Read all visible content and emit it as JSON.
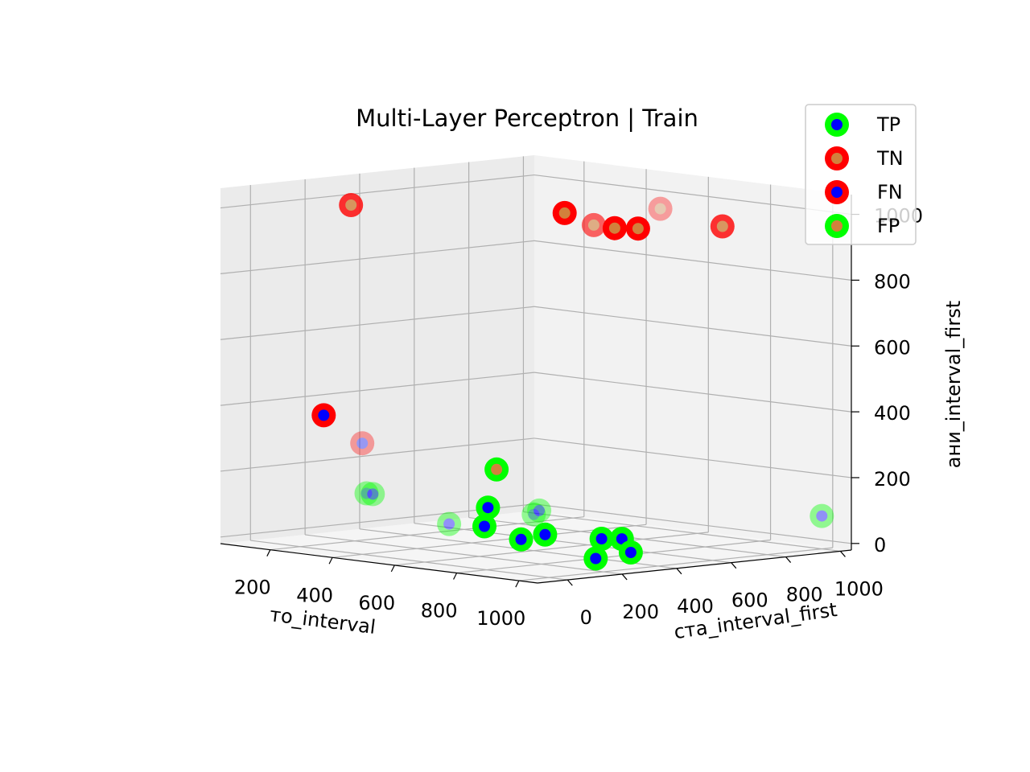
{
  "chart_data": {
    "type": "scatter",
    "projection": "3d",
    "title": "Multi-Layer Perceptron | Train",
    "xlabel": "то_interval",
    "ylabel": "ста_interval_first",
    "zlabel": "ани_interval_first",
    "xticks": [
      "200",
      "400",
      "600",
      "800",
      "1000"
    ],
    "yticks": [
      "0",
      "200",
      "400",
      "600",
      "800",
      "1000"
    ],
    "zticks": [
      "0",
      "200",
      "400",
      "600",
      "800",
      "1000"
    ],
    "grid": true,
    "legend_position": "top-right",
    "series": [
      {
        "name": "TP",
        "edge_color": "#00ff00",
        "face_color": "#0000ff",
        "points": [
          {
            "x": 760,
            "y": 50,
            "z": 160,
            "alpha": 1.0
          },
          {
            "x": 740,
            "y": 60,
            "z": 100,
            "alpha": 1.0
          },
          {
            "x": 840,
            "y": 80,
            "z": 70,
            "alpha": 1.0
          },
          {
            "x": 900,
            "y": 100,
            "z": 90,
            "alpha": 1.0
          },
          {
            "x": 950,
            "y": 250,
            "z": 70,
            "alpha": 1.0
          },
          {
            "x": 980,
            "y": 290,
            "z": 70,
            "alpha": 1.0
          },
          {
            "x": 1000,
            "y": 300,
            "z": 30,
            "alpha": 1.0
          },
          {
            "x": 940,
            "y": 240,
            "z": 10,
            "alpha": 1.0
          },
          {
            "x": 150,
            "y": 300,
            "z": 110,
            "alpha": 0.4
          },
          {
            "x": 170,
            "y": 300,
            "z": 110,
            "alpha": 0.4
          },
          {
            "x": 240,
            "y": 500,
            "z": 10,
            "alpha": 0.4
          },
          {
            "x": 600,
            "y": 400,
            "z": 90,
            "alpha": 0.4
          },
          {
            "x": 600,
            "y": 420,
            "z": 100,
            "alpha": 0.4
          },
          {
            "x": 1000,
            "y": 1000,
            "z": 80,
            "alpha": 0.4
          }
        ]
      },
      {
        "name": "TN",
        "edge_color": "#ff0000",
        "face_color": "#d2803c",
        "points": [
          {
            "x": 100,
            "y": 300,
            "z": 980,
            "alpha": 0.8
          },
          {
            "x": 480,
            "y": 650,
            "z": 970,
            "alpha": 1.0
          },
          {
            "x": 600,
            "y": 620,
            "z": 950,
            "alpha": 0.6
          },
          {
            "x": 720,
            "y": 560,
            "z": 960,
            "alpha": 1.0
          },
          {
            "x": 760,
            "y": 600,
            "z": 960,
            "alpha": 1.0
          },
          {
            "x": 900,
            "y": 750,
            "z": 970,
            "alpha": 0.8
          },
          {
            "x": 700,
            "y": 750,
            "z": 1000,
            "alpha": 0.35
          }
        ]
      },
      {
        "name": "FN",
        "edge_color": "#ff0000",
        "face_color": "#0000ff",
        "points": [
          {
            "x": 100,
            "y": 200,
            "z": 350,
            "alpha": 1.0
          },
          {
            "x": 180,
            "y": 250,
            "z": 270,
            "alpha": 0.35
          }
        ]
      },
      {
        "name": "FP",
        "edge_color": "#00ff00",
        "face_color": "#d2803c",
        "points": [
          {
            "x": 700,
            "y": 150,
            "z": 260,
            "alpha": 1.0
          }
        ]
      }
    ]
  }
}
